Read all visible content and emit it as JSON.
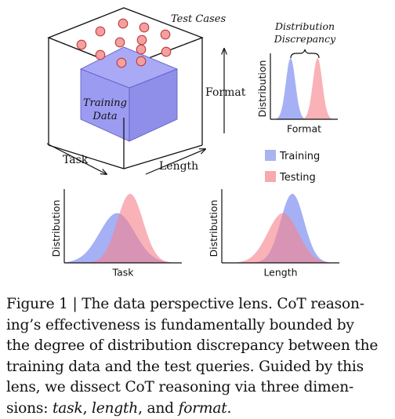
{
  "figure": {
    "cube": {
      "test_cases_label": "Test Cases",
      "training_label_line1": "Training",
      "training_label_line2": "Data",
      "axis_format": "Format",
      "axis_task": "Task",
      "axis_length": "Length",
      "test_case_color": "#f4a0a0",
      "training_color": "#9b9bf2"
    },
    "discrepancy_title_line1": "Distribution",
    "discrepancy_title_line2": "Discrepancy",
    "legend": [
      {
        "label": "Training",
        "color": "#a9b3ef"
      },
      {
        "label": "Testing",
        "color": "#f6a9ae"
      }
    ]
  },
  "chart_data": [
    {
      "type": "area",
      "xlabel": "Format",
      "ylabel": "Distribution",
      "series": [
        {
          "name": "Training",
          "center": 0.3,
          "spread": 0.07,
          "peak": 1.0
        },
        {
          "name": "Testing",
          "center": 0.7,
          "spread": 0.07,
          "peak": 1.0
        }
      ]
    },
    {
      "type": "area",
      "xlabel": "Task",
      "ylabel": "Distribution",
      "series": [
        {
          "name": "Training",
          "center": 0.45,
          "spread": 0.15,
          "peak": 0.72
        },
        {
          "name": "Testing",
          "center": 0.56,
          "spread": 0.11,
          "peak": 1.0
        }
      ]
    },
    {
      "type": "area",
      "xlabel": "Length",
      "ylabel": "Distribution",
      "series": [
        {
          "name": "Training",
          "center": 0.6,
          "spread": 0.1,
          "peak": 1.0
        },
        {
          "name": "Testing",
          "center": 0.52,
          "spread": 0.13,
          "peak": 0.72
        }
      ]
    }
  ],
  "caption": {
    "lines": [
      "Figure 1 | The data perspective lens. CoT reason-",
      "ing’s effectiveness is fundamentally bounded by",
      "the degree of distribution discrepancy between the",
      "training data and the test queries. Guided by this",
      "lens, we dissect CoT reasoning via three dimen-"
    ],
    "last_line_prefix": "sions: ",
    "italic_1": "task",
    "sep_1": ", ",
    "italic_2": "length",
    "sep_2": ", and ",
    "italic_3": "format",
    "suffix": "."
  }
}
